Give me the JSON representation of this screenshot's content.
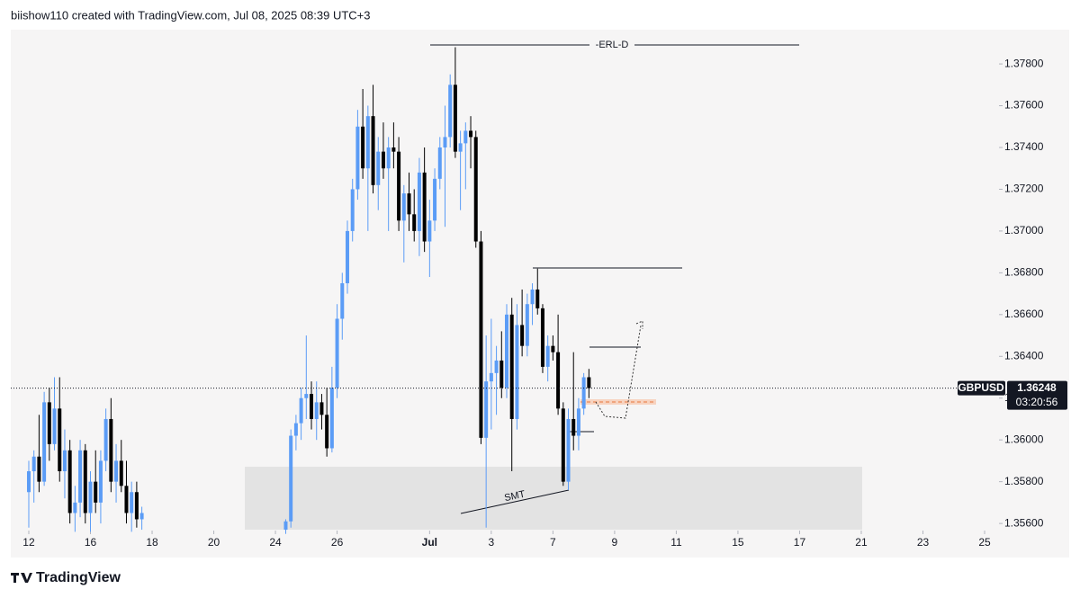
{
  "header": "biishow110 created with TradingView.com, Jul 08, 2025 08:39 UTC+3",
  "footer": "TradingView",
  "chart_data": {
    "type": "candlestick",
    "symbol": "GBPUSD",
    "last_price": {
      "value": 1.36248,
      "label": "1.36248"
    },
    "countdown": "03:20:56",
    "annotations": [
      "-ERL-D",
      "SMT"
    ],
    "up_color": "#5b9cf6",
    "down_color": "#000000",
    "xlim": [
      -3.5,
      188.8
    ],
    "ylim": [
      1.35566,
      1.37964
    ],
    "xticks": [
      {
        "value": 0,
        "label": "12"
      },
      {
        "value": 12,
        "label": "16"
      },
      {
        "value": 24,
        "label": "18"
      },
      {
        "value": 36,
        "label": "20"
      },
      {
        "value": 48,
        "label": "24"
      },
      {
        "value": 60,
        "label": "26"
      },
      {
        "value": 78,
        "label": "Jul"
      },
      {
        "value": 90,
        "label": "3"
      },
      {
        "value": 102,
        "label": "7"
      },
      {
        "value": 114,
        "label": "9"
      },
      {
        "value": 126,
        "label": "11"
      },
      {
        "value": 138,
        "label": "15"
      },
      {
        "value": 150,
        "label": "17"
      },
      {
        "value": 162,
        "label": "21"
      },
      {
        "value": 174,
        "label": "23"
      },
      {
        "value": 186,
        "label": "25"
      }
    ],
    "yticks": [
      {
        "value": 1.356,
        "label": "1.35600"
      },
      {
        "value": 1.358,
        "label": "1.35800"
      },
      {
        "value": 1.36,
        "label": "1.36000"
      },
      {
        "value": 1.362,
        "label": "1.36200"
      },
      {
        "value": 1.364,
        "label": "1.36400"
      },
      {
        "value": 1.366,
        "label": "1.36600"
      },
      {
        "value": 1.368,
        "label": "1.36800"
      },
      {
        "value": 1.37,
        "label": "1.37000"
      },
      {
        "value": 1.372,
        "label": "1.37200"
      },
      {
        "value": 1.374,
        "label": "1.37400"
      },
      {
        "value": 1.376,
        "label": "1.37600"
      },
      {
        "value": 1.378,
        "label": "1.37800"
      }
    ],
    "x": [
      0,
      1,
      2,
      3,
      4,
      5,
      6,
      7,
      8,
      9,
      10,
      11,
      12,
      13,
      14,
      15,
      16,
      17,
      18,
      19,
      20,
      21,
      22,
      50,
      51,
      52,
      53,
      54,
      55,
      56,
      57,
      58,
      59,
      60,
      61,
      62,
      63,
      64,
      65,
      66,
      67,
      68,
      69,
      70,
      71,
      72,
      73,
      74,
      75,
      76,
      77,
      78,
      79,
      80,
      81,
      82,
      83,
      84,
      85,
      86,
      87,
      88,
      89,
      90,
      91,
      92,
      93,
      94,
      95,
      96,
      97,
      98,
      99,
      100,
      101,
      102,
      103,
      104,
      105,
      106,
      107,
      108,
      109
    ],
    "open": [
      1.3575,
      1.3585,
      1.3592,
      1.358,
      1.3618,
      1.3598,
      1.3615,
      1.3585,
      1.3595,
      1.3565,
      1.357,
      1.3595,
      1.3565,
      1.358,
      1.357,
      1.359,
      1.361,
      1.358,
      1.359,
      1.3578,
      1.3565,
      1.3575,
      1.3562,
      1.3557,
      1.3561,
      1.3602,
      1.3608,
      1.362,
      1.3622,
      1.361,
      1.3618,
      1.3612,
      1.3596,
      1.3625,
      1.3658,
      1.3675,
      1.37,
      1.372,
      1.375,
      1.373,
      1.3755,
      1.3722,
      1.3738,
      1.373,
      1.374,
      1.3738,
      1.3705,
      1.3718,
      1.3708,
      1.37,
      1.3728,
      1.3695,
      1.3705,
      1.3725,
      1.374,
      1.3745,
      1.377,
      1.3738,
      1.3742,
      1.3748,
      1.3745,
      1.3695,
      1.3601,
      1.3628,
      1.3632,
      1.3638,
      1.3625,
      1.366,
      1.361,
      1.3655,
      1.3645,
      1.3665,
      1.3672,
      1.3663,
      1.3635,
      1.3645,
      1.3642,
      1.3615,
      1.358,
      1.361,
      1.3602,
      1.3615,
      1.363
    ],
    "high": [
      1.359,
      1.3595,
      1.3612,
      1.3623,
      1.3625,
      1.363,
      1.363,
      1.3605,
      1.36,
      1.3578,
      1.36,
      1.3598,
      1.3585,
      1.3595,
      1.3595,
      1.3615,
      1.362,
      1.3598,
      1.36,
      1.359,
      1.358,
      1.358,
      1.3568,
      1.3562,
      1.3605,
      1.3612,
      1.3625,
      1.365,
      1.3628,
      1.3628,
      1.3622,
      1.3625,
      1.3635,
      1.3665,
      1.368,
      1.3705,
      1.3725,
      1.3758,
      1.3768,
      1.376,
      1.377,
      1.3745,
      1.3752,
      1.3745,
      1.3752,
      1.3745,
      1.3722,
      1.3728,
      1.372,
      1.3735,
      1.374,
      1.3715,
      1.373,
      1.3745,
      1.376,
      1.3775,
      1.3788,
      1.3748,
      1.3752,
      1.3755,
      1.3748,
      1.37,
      1.365,
      1.3658,
      1.3645,
      1.3652,
      1.3665,
      1.3668,
      1.3665,
      1.3672,
      1.367,
      1.3675,
      1.3682,
      1.3665,
      1.365,
      1.365,
      1.366,
      1.3618,
      1.3615,
      1.3642,
      1.362,
      1.3632,
      1.3634
    ],
    "low": [
      1.3558,
      1.357,
      1.3575,
      1.3578,
      1.359,
      1.3595,
      1.358,
      1.3572,
      1.356,
      1.3556,
      1.3563,
      1.356,
      1.3556,
      1.3565,
      1.356,
      1.3585,
      1.3575,
      1.357,
      1.3575,
      1.356,
      1.3556,
      1.3558,
      1.3557,
      1.3555,
      1.3558,
      1.3595,
      1.36,
      1.361,
      1.3605,
      1.36,
      1.3605,
      1.3592,
      1.3594,
      1.362,
      1.3648,
      1.367,
      1.3695,
      1.3715,
      1.3725,
      1.37,
      1.3718,
      1.371,
      1.3725,
      1.37,
      1.373,
      1.37,
      1.3685,
      1.37,
      1.3695,
      1.3688,
      1.369,
      1.3678,
      1.37,
      1.372,
      1.3702,
      1.374,
      1.3735,
      1.371,
      1.372,
      1.373,
      1.3692,
      1.3598,
      1.3558,
      1.3605,
      1.3612,
      1.362,
      1.362,
      1.3585,
      1.3605,
      1.364,
      1.364,
      1.3655,
      1.366,
      1.3632,
      1.3628,
      1.3638,
      1.3612,
      1.3578,
      1.3576,
      1.3595,
      1.3595,
      1.3612,
      1.362
    ],
    "close": [
      1.3585,
      1.3592,
      1.358,
      1.3618,
      1.3598,
      1.3615,
      1.3585,
      1.3595,
      1.3565,
      1.357,
      1.3595,
      1.3565,
      1.358,
      1.357,
      1.359,
      1.361,
      1.358,
      1.359,
      1.3578,
      1.3565,
      1.3575,
      1.3562,
      1.3565,
      1.3561,
      1.3602,
      1.3608,
      1.362,
      1.3622,
      1.361,
      1.3618,
      1.3612,
      1.3596,
      1.3625,
      1.3658,
      1.3675,
      1.37,
      1.372,
      1.375,
      1.373,
      1.3755,
      1.3722,
      1.3738,
      1.373,
      1.374,
      1.3738,
      1.3705,
      1.3718,
      1.3708,
      1.37,
      1.3728,
      1.3695,
      1.3705,
      1.3725,
      1.374,
      1.3745,
      1.377,
      1.3738,
      1.3742,
      1.3748,
      1.3745,
      1.3695,
      1.3601,
      1.3628,
      1.3632,
      1.3638,
      1.3625,
      1.366,
      1.361,
      1.3655,
      1.3645,
      1.3665,
      1.3672,
      1.3663,
      1.3635,
      1.3645,
      1.3642,
      1.3615,
      1.358,
      1.361,
      1.3602,
      1.3615,
      1.363,
      1.36248
    ]
  }
}
